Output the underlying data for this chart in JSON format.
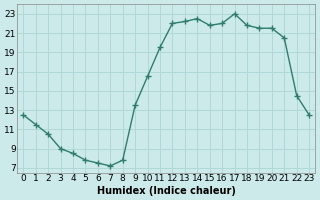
{
  "x": [
    0,
    1,
    2,
    3,
    4,
    5,
    6,
    7,
    8,
    9,
    10,
    11,
    12,
    13,
    14,
    15,
    16,
    17,
    18,
    19,
    20,
    21,
    22,
    23
  ],
  "y": [
    12.5,
    11.5,
    10.5,
    9.0,
    8.5,
    7.8,
    7.5,
    7.2,
    7.8,
    13.5,
    16.5,
    19.5,
    22.0,
    22.2,
    22.5,
    21.8,
    22.0,
    23.0,
    21.8,
    21.5,
    21.5,
    20.5,
    14.5,
    12.5
  ],
  "line_color": "#2e7d6e",
  "marker": "+",
  "marker_size": 4,
  "marker_lw": 1.0,
  "bg_color": "#cceaea",
  "grid_color": "#b0d8d8",
  "xlabel": "Humidex (Indice chaleur)",
  "xlim": [
    -0.5,
    23.5
  ],
  "ylim": [
    6.5,
    24
  ],
  "yticks": [
    7,
    9,
    11,
    13,
    15,
    17,
    19,
    21,
    23
  ],
  "xticks": [
    0,
    1,
    2,
    3,
    4,
    5,
    6,
    7,
    8,
    9,
    10,
    11,
    12,
    13,
    14,
    15,
    16,
    17,
    18,
    19,
    20,
    21,
    22,
    23
  ],
  "xlabel_fontsize": 7,
  "tick_fontsize": 6.5,
  "line_width": 1.0
}
